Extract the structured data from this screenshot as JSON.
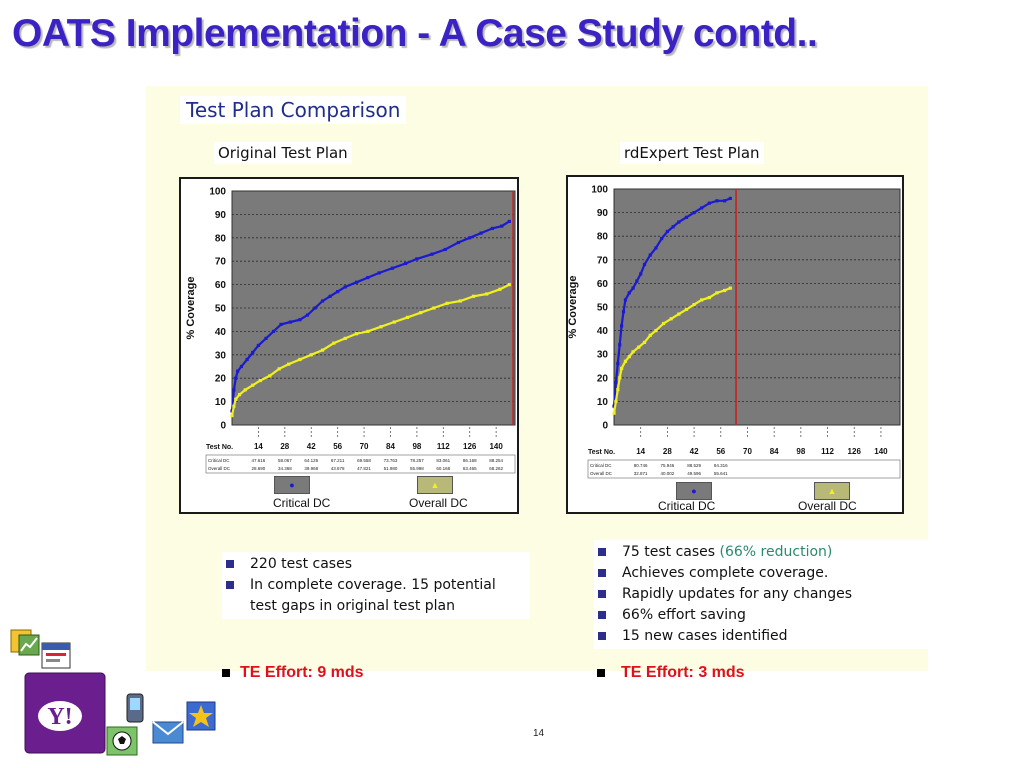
{
  "slide": {
    "title": "OATS Implementation - A Case Study contd..",
    "section_heading": "Test Plan Comparison",
    "page_number": "14"
  },
  "charts": {
    "y_axis_label": "% Coverage",
    "row_label": "Test No.",
    "left": {
      "heading": "Original Test Plan",
      "table_rows": [
        {
          "label": "Critical DC",
          "cells": [
            "47.616",
            "58.067",
            "64.125",
            "67.211",
            "69.558",
            "73.763",
            "78.257",
            "83.061",
            "86.168",
            "88.254"
          ]
        },
        {
          "label": "Overall DC",
          "cells": [
            "28.690",
            "34.368",
            "39.968",
            "43.678",
            "47.821",
            "51.980",
            "55.998",
            "60.168",
            "63.465",
            "68.262"
          ]
        }
      ],
      "legend": {
        "critical": "Critical DC",
        "overall": "Overall DC"
      }
    },
    "right": {
      "heading": "rdExpert Test Plan",
      "table_rows": [
        {
          "label": "Critical DC",
          "cells": [
            "80.746",
            "75.946",
            "88.529",
            "94.316",
            "",
            "",
            "",
            "",
            "",
            ""
          ]
        },
        {
          "label": "Overall DC",
          "cells": [
            "32.871",
            "40.002",
            "49.596",
            "55.641",
            "",
            "",
            "",
            "",
            "",
            ""
          ]
        }
      ],
      "legend": {
        "critical": "Critical DC",
        "overall": "Overall DC"
      }
    }
  },
  "chart_data": [
    {
      "type": "line",
      "title": "Original Test Plan",
      "ylabel": "% Coverage",
      "xlabel": "Test No.",
      "ylim": [
        0,
        100
      ],
      "xlim": [
        0,
        150
      ],
      "x_ticks": [
        14,
        28,
        42,
        56,
        70,
        84,
        98,
        112,
        126,
        140
      ],
      "y_ticks": [
        0,
        10,
        20,
        30,
        40,
        50,
        60,
        70,
        80,
        90,
        100
      ],
      "grid": true,
      "legend_position": "bottom",
      "marker_line_x": 149,
      "series": [
        {
          "name": "Critical DC",
          "color": "#1a1ad0",
          "points": [
            [
              0,
              6
            ],
            [
              1,
              15
            ],
            [
              2,
              20
            ],
            [
              3,
              23
            ],
            [
              5,
              25
            ],
            [
              8,
              28
            ],
            [
              11,
              31
            ],
            [
              14,
              34
            ],
            [
              18,
              37
            ],
            [
              22,
              40
            ],
            [
              26,
              43
            ],
            [
              31,
              44
            ],
            [
              36,
              45
            ],
            [
              40,
              47
            ],
            [
              44,
              50
            ],
            [
              48,
              53
            ],
            [
              52,
              55
            ],
            [
              56,
              57
            ],
            [
              60,
              59
            ],
            [
              66,
              61
            ],
            [
              72,
              63
            ],
            [
              78,
              65
            ],
            [
              85,
              67
            ],
            [
              92,
              69
            ],
            [
              98,
              71
            ],
            [
              106,
              73
            ],
            [
              113,
              75
            ],
            [
              120,
              78
            ],
            [
              126,
              80
            ],
            [
              132,
              82
            ],
            [
              138,
              84
            ],
            [
              143,
              85
            ],
            [
              147,
              87
            ]
          ]
        },
        {
          "name": "Overall DC",
          "color": "#f0f020",
          "points": [
            [
              0,
              4
            ],
            [
              1,
              8
            ],
            [
              2,
              11
            ],
            [
              4,
              13
            ],
            [
              7,
              15
            ],
            [
              11,
              17
            ],
            [
              15,
              19
            ],
            [
              20,
              21
            ],
            [
              25,
              24
            ],
            [
              30,
              26
            ],
            [
              36,
              28
            ],
            [
              42,
              30
            ],
            [
              48,
              32
            ],
            [
              54,
              35
            ],
            [
              60,
              37
            ],
            [
              66,
              39
            ],
            [
              72,
              40
            ],
            [
              79,
              42
            ],
            [
              86,
              44
            ],
            [
              93,
              46
            ],
            [
              100,
              48
            ],
            [
              107,
              50
            ],
            [
              114,
              52
            ],
            [
              121,
              53
            ],
            [
              128,
              55
            ],
            [
              135,
              56
            ],
            [
              142,
              58
            ],
            [
              147,
              60
            ]
          ]
        }
      ]
    },
    {
      "type": "line",
      "title": "rdExpert Test Plan",
      "ylabel": "% Coverage",
      "xlabel": "Test No.",
      "ylim": [
        0,
        100
      ],
      "xlim": [
        0,
        150
      ],
      "x_ticks": [
        14,
        28,
        42,
        56,
        70,
        84,
        98,
        112,
        126,
        140
      ],
      "y_ticks": [
        0,
        10,
        20,
        30,
        40,
        50,
        60,
        70,
        80,
        90,
        100
      ],
      "grid": true,
      "legend_position": "bottom",
      "marker_line_x": 64,
      "series": [
        {
          "name": "Critical DC",
          "color": "#1a1ad0",
          "points": [
            [
              0,
              8
            ],
            [
              1,
              18
            ],
            [
              2,
              26
            ],
            [
              3,
              34
            ],
            [
              4,
              42
            ],
            [
              5,
              48
            ],
            [
              6,
              53
            ],
            [
              8,
              56
            ],
            [
              10,
              58
            ],
            [
              12,
              61
            ],
            [
              14,
              64
            ],
            [
              16,
              68
            ],
            [
              19,
              72
            ],
            [
              22,
              75
            ],
            [
              25,
              79
            ],
            [
              28,
              82
            ],
            [
              31,
              84
            ],
            [
              34,
              86
            ],
            [
              38,
              88
            ],
            [
              42,
              90
            ],
            [
              46,
              92
            ],
            [
              50,
              94
            ],
            [
              54,
              95
            ],
            [
              58,
              95
            ],
            [
              61,
              96
            ]
          ]
        },
        {
          "name": "Overall DC",
          "color": "#f0f020",
          "points": [
            [
              0,
              5
            ],
            [
              1,
              10
            ],
            [
              2,
              15
            ],
            [
              3,
              20
            ],
            [
              4,
              24
            ],
            [
              6,
              27
            ],
            [
              8,
              29
            ],
            [
              10,
              31
            ],
            [
              13,
              33
            ],
            [
              16,
              35
            ],
            [
              19,
              38
            ],
            [
              22,
              40
            ],
            [
              26,
              43
            ],
            [
              30,
              45
            ],
            [
              34,
              47
            ],
            [
              38,
              49
            ],
            [
              42,
              51
            ],
            [
              46,
              53
            ],
            [
              50,
              54
            ],
            [
              54,
              56
            ],
            [
              58,
              57
            ],
            [
              61,
              58
            ]
          ]
        }
      ]
    }
  ],
  "left_bullets": [
    {
      "text": "220 test cases",
      "highlight": ""
    },
    {
      "text": "In complete coverage. 15 potential test gaps in original test plan",
      "highlight": ""
    }
  ],
  "right_bullets": [
    {
      "text": "75 test cases ",
      "highlight": "(66% reduction)"
    },
    {
      "text": "Achieves complete coverage.",
      "highlight": ""
    },
    {
      "text": "Rapidly updates for any changes",
      "highlight": ""
    },
    {
      "text": "66% effort saving",
      "highlight": ""
    },
    {
      "text": "15 new cases identified",
      "highlight": ""
    }
  ],
  "effort": {
    "left": "TE Effort: 9 mds",
    "right": "TE Effort: 3 mds"
  },
  "colors": {
    "title": "#3a22c4",
    "plot_bg": "#7a7a7a",
    "critical": "#1a1ad0",
    "overall": "#f0f020",
    "marker_line": "#cc2020",
    "effort_text": "#e0101a"
  },
  "icons": [
    "folder-chart-icon",
    "calendar-icon",
    "yahoo-logo-icon",
    "mobile-phone-icon",
    "soccer-icon",
    "mail-icon",
    "star-icon"
  ],
  "logo_text": "Y!"
}
